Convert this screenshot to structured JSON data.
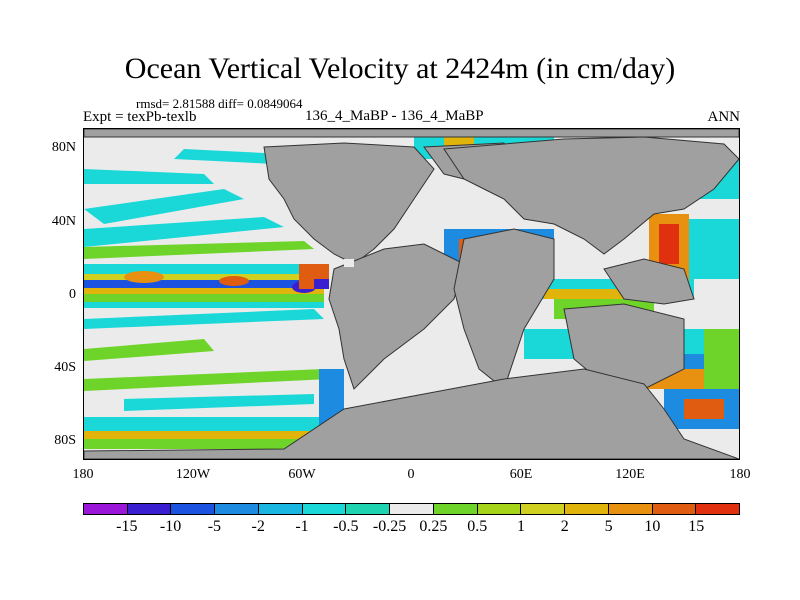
{
  "header": {
    "title": "Ocean Vertical Velocity at 2424m (in cm/day)",
    "stats": "rmsd= 2.81588 diff= 0.0849064",
    "expt": "Expt = texPb-texlb",
    "run": "136_4_MaBP - 136_4_MaBP",
    "season": "ANN"
  },
  "map": {
    "lat_labels": [
      "80N",
      "40N",
      "0",
      "40S",
      "80S"
    ],
    "lon_labels": [
      "180",
      "120W",
      "60W",
      "0",
      "60E",
      "120E",
      "180"
    ],
    "land_color": "#a0a0a0",
    "ocean_base_color": "#ebebeb"
  },
  "colorbar": {
    "colors": [
      "#9a16d8",
      "#3a1fd0",
      "#1c52e0",
      "#1c8be0",
      "#18b6e0",
      "#1ad8d8",
      "#1ed4b0",
      "#ebebeb",
      "#6ed42a",
      "#a6d418",
      "#d0d020",
      "#e0b40a",
      "#e89010",
      "#e05c10",
      "#e03010"
    ],
    "labels": [
      "-15",
      "-10",
      "-5",
      "-2",
      "-1",
      "-0.5",
      "-0.25",
      "0.25",
      "0.5",
      "1",
      "2",
      "5",
      "10",
      "15"
    ]
  }
}
